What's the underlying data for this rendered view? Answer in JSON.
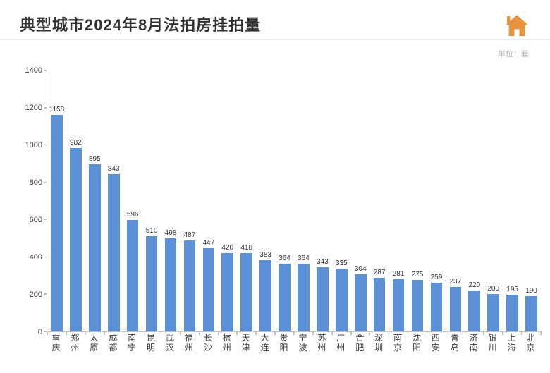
{
  "title": "典型城市2024年8月法拍房挂拍量",
  "unit_label": "单位：套",
  "icon": {
    "name": "house-icon",
    "color": "#e8933e"
  },
  "chart": {
    "type": "bar",
    "bar_color": "#5b8fd6",
    "axis_color": "#bfbfbf",
    "tick_font_color": "#3a3a3a",
    "label_font_size": 10,
    "xlabel_font_size": 12,
    "tick_font_size": 11,
    "ylim": [
      0,
      1400
    ],
    "ytick_step": 200,
    "bar_width_ratio": 0.62,
    "categories": [
      "重庆",
      "郑州",
      "太原",
      "成都",
      "南宁",
      "昆明",
      "武汉",
      "福州",
      "长沙",
      "杭州",
      "天津",
      "大连",
      "贵阳",
      "宁波",
      "苏州",
      "广州",
      "合肥",
      "深圳",
      "南京",
      "沈阳",
      "西安",
      "青岛",
      "济南",
      "银川",
      "上海",
      "北京"
    ],
    "values": [
      1158,
      982,
      895,
      843,
      596,
      510,
      498,
      487,
      447,
      420,
      418,
      383,
      364,
      364,
      343,
      335,
      304,
      287,
      281,
      275,
      259,
      237,
      220,
      200,
      195,
      190
    ],
    "background_color": "#ffffff"
  }
}
